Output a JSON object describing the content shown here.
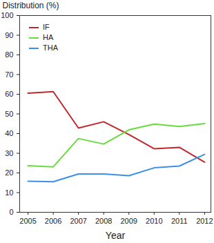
{
  "chart_data": {
    "type": "line",
    "x_label": "Year",
    "y_label": "Distribution (%)",
    "x": [
      2005,
      2006,
      2007,
      2008,
      2009,
      2010,
      2011,
      2012
    ],
    "series": [
      {
        "name": "IF",
        "color": "#c0272d",
        "values": [
          60.5,
          61.3,
          42.8,
          46.0,
          39.5,
          32.3,
          33.0,
          25.5
        ]
      },
      {
        "name": "HA",
        "color": "#66dd3c",
        "values": [
          23.7,
          23.1,
          37.5,
          34.7,
          41.9,
          44.8,
          43.6,
          45.1
        ]
      },
      {
        "name": "THA",
        "color": "#3a8fe6",
        "values": [
          15.8,
          15.5,
          19.5,
          19.5,
          18.6,
          22.6,
          23.5,
          29.4
        ]
      }
    ],
    "xlim": [
      2004.67,
      2012.25
    ],
    "xticks": [
      2005,
      2006,
      2007,
      2008,
      2009,
      2010,
      2011,
      2012
    ],
    "ylim": [
      0,
      100
    ],
    "yticks": [
      0,
      10,
      20,
      30,
      40,
      50,
      60,
      70,
      80,
      90,
      100
    ],
    "grid": false,
    "legend": "upper left"
  }
}
